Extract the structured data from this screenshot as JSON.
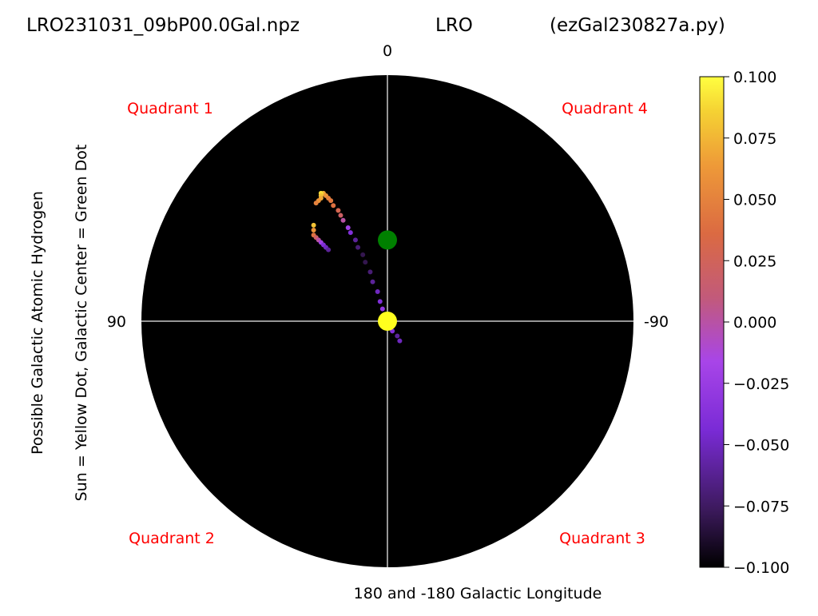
{
  "header": {
    "file_name": "LRO231031_09bP00.0Gal.npz",
    "station": "LRO",
    "script_name": "(ezGal230827a.py)"
  },
  "chart_data": {
    "type": "scatter",
    "projection": "polar galactic plane map",
    "title_parts": [
      "LRO231031_09bP00.0Gal.npz",
      "LRO",
      "(ezGal230827a.py)"
    ],
    "xlabel": "180 and -180 Galactic Longitude",
    "ylabel_lines": [
      "Possible Galactic Atomic Hydrogen",
      "Sun = Yellow Dot, Galactic Center = Green Dot"
    ],
    "longitude_labels": {
      "top": "0",
      "left": "90",
      "right": "-90"
    },
    "quadrant_labels": [
      "Quadrant 1",
      "Quadrant 4",
      "Quadrant 2",
      "Quadrant 3"
    ],
    "colors": {
      "background_disk": "#000000",
      "axis_lines": "#c8c8c8",
      "quadrant_text": "#ff0000",
      "sun": "#ffff1e",
      "galactic_center": "#008000"
    },
    "grid": false,
    "sun": {
      "x": 0,
      "y": 0
    },
    "galactic_center": {
      "x": 0,
      "y": 0.33
    },
    "colorbar": {
      "min": -0.1,
      "max": 0.1,
      "ticks": [
        0.1,
        0.075,
        0.05,
        0.025,
        0.0,
        -0.025,
        -0.05,
        -0.075,
        -0.1
      ],
      "tick_labels": [
        "0.100",
        "0.075",
        "0.050",
        "0.025",
        "0.000",
        "−0.025",
        "−0.050",
        "−0.075",
        "−0.100"
      ],
      "colormap": "gnuplot-like"
    },
    "series": [
      {
        "points": [
          [
            -0.26,
            0.52,
            0.07
          ],
          [
            -0.25,
            0.51,
            0.06
          ],
          [
            -0.24,
            0.5,
            0.05
          ],
          [
            -0.23,
            0.49,
            0.045
          ],
          [
            -0.22,
            0.47,
            0.04
          ],
          [
            -0.2,
            0.45,
            0.03
          ],
          [
            -0.19,
            0.43,
            0.02
          ],
          [
            -0.18,
            0.41,
            0.0
          ],
          [
            -0.16,
            0.38,
            -0.02
          ],
          [
            -0.15,
            0.36,
            -0.04
          ],
          [
            -0.13,
            0.33,
            -0.06
          ],
          [
            -0.12,
            0.3,
            -0.07
          ],
          [
            -0.1,
            0.27,
            -0.08
          ],
          [
            -0.09,
            0.24,
            -0.08
          ],
          [
            -0.07,
            0.2,
            -0.07
          ],
          [
            -0.06,
            0.16,
            -0.06
          ],
          [
            -0.04,
            0.12,
            -0.05
          ],
          [
            -0.03,
            0.08,
            -0.04
          ],
          [
            -0.02,
            0.05,
            -0.03
          ],
          [
            -0.01,
            0.02,
            -0.02
          ],
          [
            0.0,
            0.0,
            0.02
          ],
          [
            0.01,
            -0.02,
            0.0
          ],
          [
            0.02,
            -0.04,
            -0.04
          ],
          [
            0.04,
            -0.06,
            -0.06
          ],
          [
            0.05,
            -0.08,
            -0.05
          ]
        ]
      },
      {
        "points": [
          [
            -0.3,
            0.39,
            0.08
          ],
          [
            -0.3,
            0.37,
            0.06
          ],
          [
            -0.3,
            0.35,
            0.04
          ],
          [
            -0.29,
            0.34,
            0.02
          ],
          [
            -0.28,
            0.33,
            0.0
          ],
          [
            -0.27,
            0.32,
            -0.02
          ],
          [
            -0.26,
            0.31,
            -0.04
          ],
          [
            -0.25,
            0.3,
            -0.05
          ],
          [
            -0.24,
            0.29,
            -0.06
          ]
        ]
      },
      {
        "points": [
          [
            -0.27,
            0.52,
            0.09
          ],
          [
            -0.27,
            0.51,
            0.08
          ],
          [
            -0.27,
            0.5,
            0.07
          ],
          [
            -0.28,
            0.49,
            0.06
          ],
          [
            -0.29,
            0.48,
            0.05
          ]
        ]
      }
    ]
  }
}
